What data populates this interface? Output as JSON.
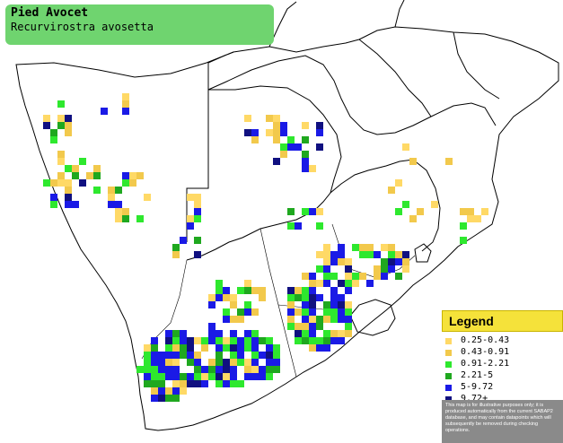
{
  "title": {
    "common_name": "Pied Avocet",
    "scientific_name": "Recurvirostra avosetta"
  },
  "legend": {
    "heading": "Legend",
    "items": [
      {
        "label": "0.25-0.43",
        "color": "#ffd966"
      },
      {
        "label": "0.43-0.91",
        "color": "#f2c94c"
      },
      {
        "label": "0.91-2.21",
        "color": "#2ee82e"
      },
      {
        "label": "2.21-5",
        "color": "#1fa81f"
      },
      {
        "label": "5-9.72",
        "color": "#1a1ae6"
      },
      {
        "label": "9.72+",
        "color": "#101080"
      }
    ],
    "disclaimer": "This map is for illustrative purposes only; it is produced automatically from the current SABAP2 database, and may contain datapoints which will subsequently be removed during checking operations."
  },
  "map": {
    "land_color": "#ffffff",
    "sea_color": "#ffffff",
    "border_color": "#000000"
  }
}
